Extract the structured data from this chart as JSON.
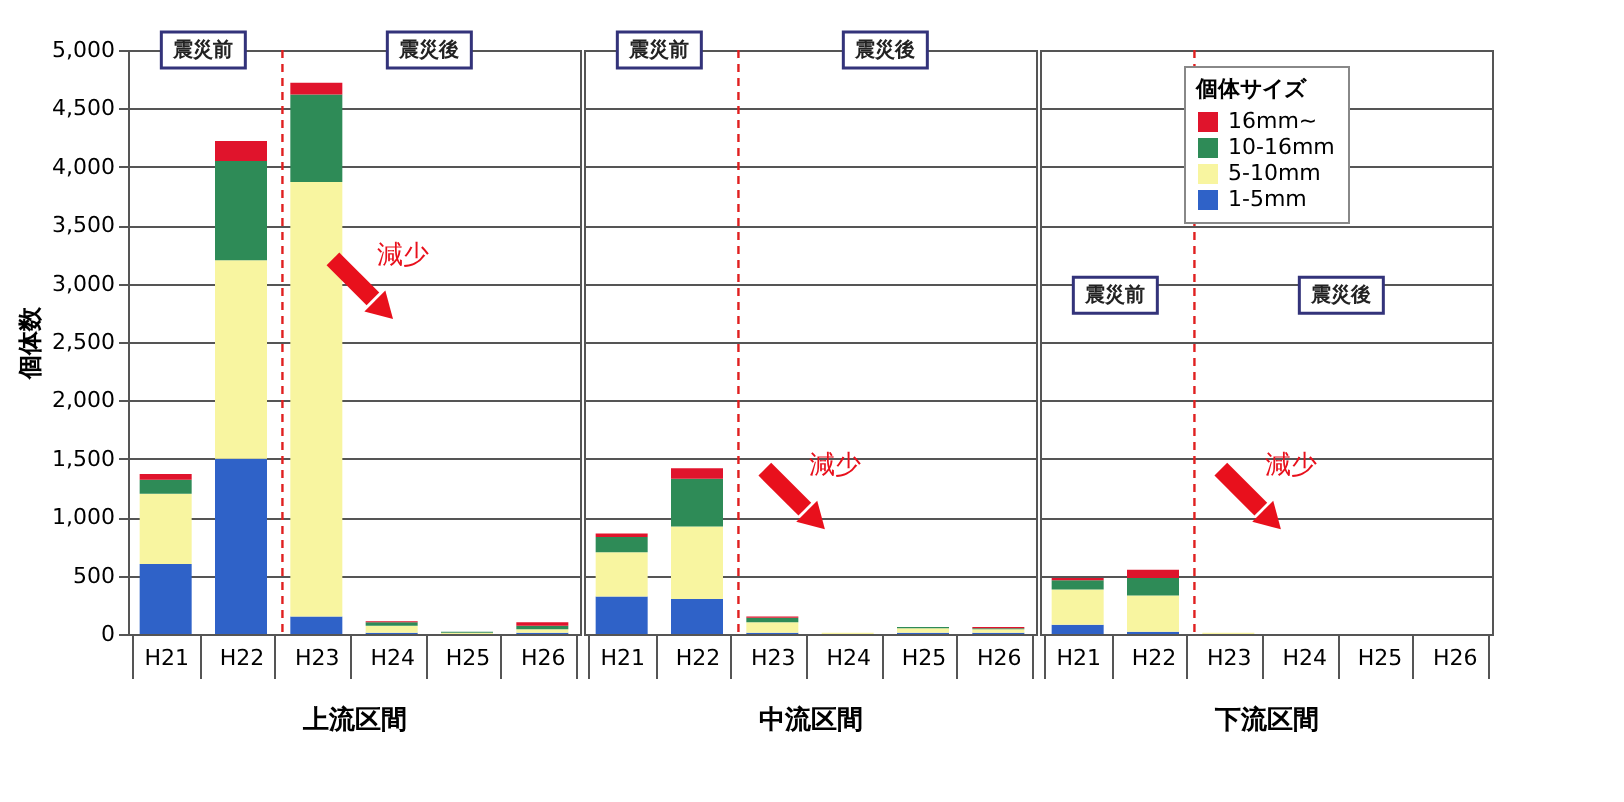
{
  "chart_data": [
    {
      "type": "bar",
      "stacked": true,
      "categories": [
        "H21",
        "H22",
        "H23",
        "H24",
        "H25",
        "H26"
      ],
      "xlabel": "上流区間",
      "ylabel": "個体数",
      "ylim": [
        0,
        5000
      ],
      "yticks": [
        0,
        {
          "value": 500,
          "label": "500"
        },
        {
          "value": 1000,
          "label": "1,000"
        },
        {
          "value": 1500,
          "label": "1,500"
        },
        {
          "value": 2000,
          "label": "2,000"
        },
        {
          "value": 2500,
          "label": "2,500"
        },
        {
          "value": 3000,
          "label": "3,000"
        },
        {
          "value": 3500,
          "label": "3,500"
        },
        {
          "value": 4000,
          "label": "4,000"
        },
        {
          "value": 4500,
          "label": "4,500"
        },
        {
          "value": 5000,
          "label": "5,000"
        }
      ],
      "grid": "y",
      "legend": "top right",
      "legend_title": "個体サイズ",
      "series": [
        {
          "name": "1-5mm",
          "color": "#2f62c8",
          "values": [
            600,
            1500,
            150,
            10,
            0,
            10
          ]
        },
        {
          "name": "5-10mm",
          "color": "#f8f5a0",
          "values": [
            600,
            1700,
            3720,
            60,
            10,
            30
          ]
        },
        {
          "name": "10-16mm",
          "color": "#2e8b57",
          "values": [
            120,
            850,
            750,
            30,
            10,
            30
          ]
        },
        {
          "name": "16mm~",
          "color": "#e0142c",
          "values": [
            50,
            170,
            100,
            10,
            0,
            30
          ]
        }
      ],
      "ref_lines": [
        {
          "axis": "x",
          "value": "H23",
          "color": "#e02020",
          "line_style": "dashed"
        }
      ],
      "annotations": [
        "震災前",
        "震災後",
        "減少"
      ]
    },
    {
      "type": "bar",
      "stacked": true,
      "categories": [
        "H21",
        "H22",
        "H23",
        "H24",
        "H25",
        "H26"
      ],
      "xlabel": "中流区間",
      "ylim": [
        0,
        5000
      ],
      "yticks": [
        0,
        500,
        1000,
        1500,
        2000,
        2500,
        3000,
        3500,
        4000,
        4500,
        5000
      ],
      "grid": "y",
      "tick_labels": "x",
      "series": [
        {
          "name": "1-5mm",
          "color": "#2f62c8",
          "values": [
            320,
            300,
            10,
            0,
            10,
            10
          ]
        },
        {
          "name": "5-10mm",
          "color": "#f8f5a0",
          "values": [
            380,
            620,
            90,
            10,
            40,
            30
          ]
        },
        {
          "name": "10-16mm",
          "color": "#2e8b57",
          "values": [
            130,
            410,
            40,
            0,
            10,
            10
          ]
        },
        {
          "name": "16mm~",
          "color": "#e0142c",
          "values": [
            30,
            90,
            10,
            0,
            0,
            10
          ]
        }
      ],
      "ref_lines": [
        {
          "axis": "x",
          "value": "H23",
          "color": "#e02020",
          "line_style": "dashed"
        }
      ],
      "annotations": [
        "震災前",
        "震災後",
        "減少"
      ]
    },
    {
      "type": "bar",
      "stacked": true,
      "categories": [
        "H21",
        "H22",
        "H23",
        "H24",
        "H25",
        "H26"
      ],
      "xlabel": "下流区間",
      "ylim": [
        0,
        5000
      ],
      "yticks": [
        0,
        500,
        1000,
        1500,
        2000,
        2500,
        3000,
        3500,
        4000,
        4500,
        5000
      ],
      "grid": "y",
      "tick_labels": "x",
      "series": [
        {
          "name": "1-5mm",
          "color": "#2f62c8",
          "values": [
            80,
            20,
            0,
            0,
            0,
            0
          ]
        },
        {
          "name": "5-10mm",
          "color": "#f8f5a0",
          "values": [
            300,
            310,
            10,
            0,
            0,
            0
          ]
        },
        {
          "name": "10-16mm",
          "color": "#2e8b57",
          "values": [
            80,
            150,
            0,
            0,
            0,
            0
          ]
        },
        {
          "name": "16mm~",
          "color": "#e0142c",
          "values": [
            20,
            70,
            0,
            0,
            0,
            0
          ]
        }
      ],
      "ref_lines": [
        {
          "axis": "x",
          "value": "H23",
          "color": "#e02020",
          "line_style": "dashed"
        }
      ],
      "annotations": [
        "震災前",
        "震災後",
        "減少"
      ]
    }
  ]
}
